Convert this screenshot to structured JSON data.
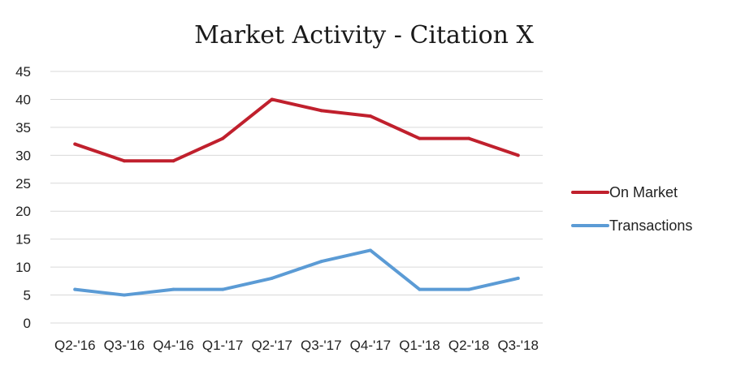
{
  "chart_data": {
    "type": "line",
    "title": "Market Activity - Citation X",
    "xlabel": "",
    "ylabel": "",
    "categories": [
      "Q2-'16",
      "Q3-'16",
      "Q4-'16",
      "Q1-'17",
      "Q2-'17",
      "Q3-'17",
      "Q4-'17",
      "Q1-'18",
      "Q2-'18",
      "Q3-'18"
    ],
    "ylim": [
      0,
      45
    ],
    "yticks": [
      0,
      5,
      10,
      15,
      20,
      25,
      30,
      35,
      40,
      45
    ],
    "grid": true,
    "legend_position": "right",
    "series": [
      {
        "name": "On Market",
        "color": "#c0202d",
        "values": [
          32,
          29,
          29,
          33,
          40,
          38,
          37,
          33,
          33,
          30
        ]
      },
      {
        "name": "Transactions",
        "color": "#5b9bd5",
        "values": [
          6,
          5,
          6,
          6,
          8,
          11,
          13,
          6,
          6,
          8
        ]
      }
    ]
  }
}
